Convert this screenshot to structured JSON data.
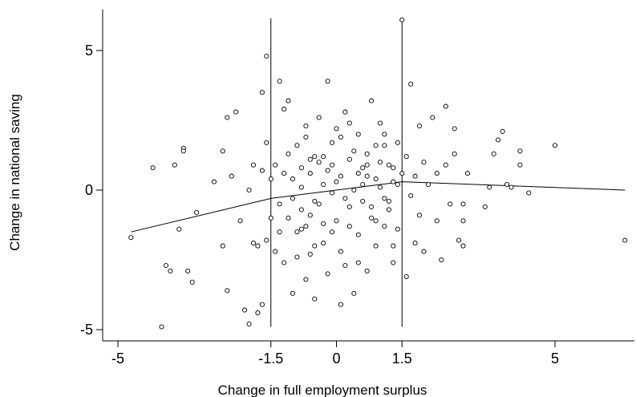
{
  "chart_data": {
    "type": "scatter",
    "title": "",
    "xlabel": "Change in full employment surplus",
    "ylabel": "Change in national saving",
    "xlim": [
      -5.3,
      6.7
    ],
    "ylim": [
      -5.3,
      6.3
    ],
    "xticks": [
      -5,
      -1.5,
      0,
      1.5,
      5
    ],
    "xtick_labels": [
      "-5",
      "-1.5",
      "0",
      "1.5",
      "5"
    ],
    "yticks": [
      -5,
      0,
      5
    ],
    "ytick_labels": [
      "-5",
      "0",
      "5"
    ],
    "vertical_reference_lines": [
      {
        "x": -1.5,
        "y_range": [
          -4.9,
          6.1
        ]
      },
      {
        "x": 1.5,
        "y_range": [
          -4.9,
          6.1
        ]
      }
    ],
    "piecewise_fit": {
      "x": [
        -4.7,
        -1.5,
        1.5,
        6.6
      ],
      "y": [
        -1.5,
        -0.3,
        0.3,
        0.0
      ]
    },
    "grid": false,
    "legend": "none",
    "series": [
      {
        "marker": "open-circle",
        "points": [
          [
            -4.7,
            -1.7
          ],
          [
            -4.2,
            0.8
          ],
          [
            -4.0,
            -4.9
          ],
          [
            -3.7,
            0.9
          ],
          [
            -3.6,
            -1.4
          ],
          [
            -3.5,
            1.5
          ],
          [
            -3.5,
            1.4
          ],
          [
            -3.3,
            -3.3
          ],
          [
            -3.2,
            -0.8
          ],
          [
            -3.9,
            -2.7
          ],
          [
            -3.8,
            -2.9
          ],
          [
            -3.4,
            -2.9
          ],
          [
            -2.8,
            0.3
          ],
          [
            -2.6,
            1.4
          ],
          [
            -2.6,
            -2.0
          ],
          [
            -2.5,
            2.6
          ],
          [
            -2.4,
            0.5
          ],
          [
            -2.3,
            2.8
          ],
          [
            -2.2,
            -1.1
          ],
          [
            -2.1,
            -4.3
          ],
          [
            -2.0,
            -4.8
          ],
          [
            -1.9,
            -1.9
          ],
          [
            -2.5,
            -3.6
          ],
          [
            -2.0,
            0.0
          ],
          [
            -1.9,
            0.9
          ],
          [
            -1.8,
            -2.0
          ],
          [
            -1.7,
            3.5
          ],
          [
            -1.7,
            0.7
          ],
          [
            -1.6,
            -1.8
          ],
          [
            -1.7,
            -4.1
          ],
          [
            -1.8,
            -4.4
          ],
          [
            -1.6,
            4.8
          ],
          [
            -1.6,
            1.7
          ],
          [
            -1.5,
            0.4
          ],
          [
            -1.5,
            -1.0
          ],
          [
            -1.4,
            -2.2
          ],
          [
            -1.4,
            0.9
          ],
          [
            -1.3,
            -0.5
          ],
          [
            -1.3,
            3.9
          ],
          [
            -1.2,
            2.9
          ],
          [
            -1.2,
            -2.6
          ],
          [
            -1.1,
            -1.0
          ],
          [
            -1.1,
            3.2
          ],
          [
            -1.0,
            0.4
          ],
          [
            -1.0,
            -3.7
          ],
          [
            -0.9,
            1.6
          ],
          [
            -0.9,
            -1.5
          ],
          [
            -0.8,
            0.1
          ],
          [
            -0.8,
            -0.7
          ],
          [
            -0.7,
            -3.2
          ],
          [
            -0.7,
            2.3
          ],
          [
            -0.7,
            -1.3
          ],
          [
            -0.6,
            0.6
          ],
          [
            -0.6,
            -2.3
          ],
          [
            -0.5,
            1.2
          ],
          [
            -0.5,
            -3.9
          ],
          [
            -0.5,
            -0.4
          ],
          [
            -0.4,
            2.6
          ],
          [
            -0.4,
            1.0
          ],
          [
            -0.3,
            -1.9
          ],
          [
            -0.3,
            0.2
          ],
          [
            -0.2,
            3.9
          ],
          [
            -0.2,
            -3.0
          ],
          [
            -0.1,
            1.7
          ],
          [
            -0.1,
            -0.1
          ],
          [
            0.0,
            -1.1
          ],
          [
            0.0,
            2.2
          ],
          [
            0.1,
            -4.1
          ],
          [
            0.1,
            0.5
          ],
          [
            0.2,
            2.8
          ],
          [
            0.2,
            -2.7
          ],
          [
            0.3,
            1.1
          ],
          [
            0.3,
            -0.6
          ],
          [
            0.4,
            -3.7
          ],
          [
            0.4,
            0.0
          ],
          [
            0.5,
            2.0
          ],
          [
            0.5,
            -1.6
          ],
          [
            0.6,
            0.8
          ],
          [
            0.6,
            -0.4
          ],
          [
            0.7,
            -2.9
          ],
          [
            0.7,
            1.3
          ],
          [
            0.8,
            3.2
          ],
          [
            0.8,
            -1.0
          ],
          [
            0.9,
            0.4
          ],
          [
            0.9,
            -2.0
          ],
          [
            1.0,
            2.4
          ],
          [
            1.0,
            0.1
          ],
          [
            1.1,
            -1.3
          ],
          [
            1.1,
            1.6
          ],
          [
            1.2,
            -0.7
          ],
          [
            1.2,
            0.9
          ],
          [
            1.3,
            -2.6
          ],
          [
            1.3,
            0.3
          ],
          [
            1.4,
            1.7
          ],
          [
            1.4,
            -1.4
          ],
          [
            1.5,
            6.1
          ],
          [
            1.5,
            0.6
          ],
          [
            1.6,
            -3.1
          ],
          [
            1.6,
            1.2
          ],
          [
            1.7,
            -0.2
          ],
          [
            1.7,
            3.8
          ],
          [
            1.8,
            -1.9
          ],
          [
            1.8,
            0.5
          ],
          [
            1.9,
            2.3
          ],
          [
            1.9,
            -0.9
          ],
          [
            2.0,
            1.0
          ],
          [
            2.0,
            -2.2
          ],
          [
            2.1,
            0.2
          ],
          [
            2.2,
            2.6
          ],
          [
            2.3,
            -1.1
          ],
          [
            2.3,
            0.6
          ],
          [
            2.4,
            -2.5
          ],
          [
            2.5,
            3.0
          ],
          [
            2.5,
            0.9
          ],
          [
            2.6,
            -0.5
          ],
          [
            2.7,
            1.3
          ],
          [
            2.7,
            2.2
          ],
          [
            2.8,
            -1.8
          ],
          [
            2.9,
            -2.0
          ],
          [
            2.9,
            -1.1
          ],
          [
            2.9,
            -0.5
          ],
          [
            3.0,
            0.6
          ],
          [
            3.4,
            -0.6
          ],
          [
            3.5,
            0.1
          ],
          [
            3.6,
            1.3
          ],
          [
            3.7,
            1.8
          ],
          [
            3.8,
            2.1
          ],
          [
            3.9,
            0.2
          ],
          [
            4.0,
            0.1
          ],
          [
            4.2,
            0.9
          ],
          [
            4.2,
            1.4
          ],
          [
            4.4,
            -0.1
          ],
          [
            5.0,
            1.6
          ],
          [
            6.6,
            -1.8
          ],
          [
            -0.8,
            0.8
          ],
          [
            -0.6,
            1.1
          ],
          [
            -0.4,
            -0.5
          ],
          [
            -0.2,
            0.7
          ],
          [
            0.0,
            0.3
          ],
          [
            0.2,
            -0.3
          ],
          [
            0.4,
            1.4
          ],
          [
            0.6,
            0.2
          ],
          [
            0.8,
            -0.6
          ],
          [
            1.0,
            1.0
          ],
          [
            1.2,
            -0.4
          ],
          [
            -1.2,
            0.6
          ],
          [
            -1.0,
            -0.3
          ],
          [
            -0.8,
            -1.4
          ],
          [
            -0.6,
            -0.9
          ],
          [
            -0.3,
            1.2
          ],
          [
            -0.1,
            -1.5
          ],
          [
            0.1,
            1.9
          ],
          [
            0.3,
            -1.3
          ],
          [
            0.5,
            0.6
          ],
          [
            0.7,
            0.9
          ],
          [
            0.9,
            -1.1
          ],
          [
            1.1,
            -0.3
          ],
          [
            1.3,
            0.8
          ],
          [
            -1.3,
            -1.5
          ],
          [
            -1.1,
            1.3
          ],
          [
            -0.9,
            -2.4
          ],
          [
            -0.7,
            1.9
          ],
          [
            -0.5,
            -2.0
          ],
          [
            -0.3,
            -1.2
          ],
          [
            -0.1,
            0.9
          ],
          [
            0.1,
            -2.2
          ],
          [
            0.3,
            2.4
          ],
          [
            0.5,
            -2.6
          ],
          [
            0.7,
            0.5
          ],
          [
            0.9,
            1.6
          ],
          [
            1.1,
            2.0
          ],
          [
            1.3,
            -2.0
          ],
          [
            1.4,
            0.2
          ]
        ]
      }
    ]
  }
}
